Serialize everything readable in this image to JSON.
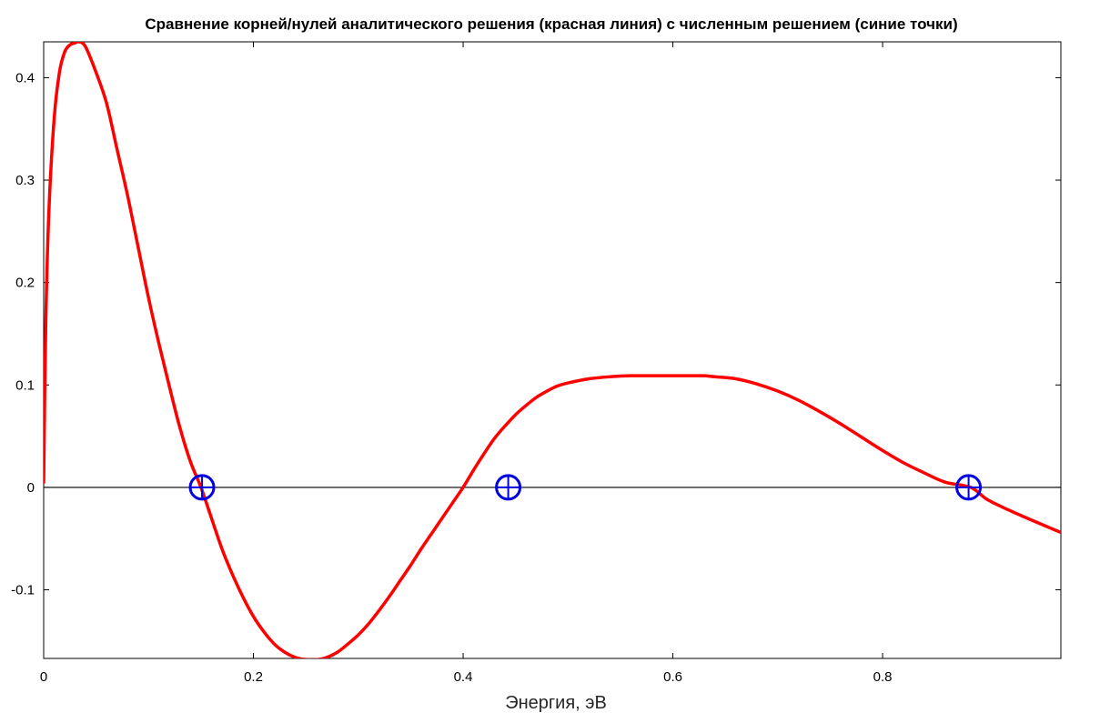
{
  "chart_data": {
    "type": "line",
    "title": "Сравнение корней/нулей аналитического решения (красная линия) с численным решением (синие точки)",
    "xlabel": "Энергия, эВ",
    "ylabel": "",
    "xlim": [
      0,
      0.97
    ],
    "ylim": [
      -0.167,
      0.435
    ],
    "xticks": [
      0,
      0.2,
      0.4,
      0.6,
      0.8
    ],
    "xtick_labels": [
      "0",
      "0.2",
      "0.4",
      "0.6",
      "0.8"
    ],
    "yticks": [
      -0.1,
      0,
      0.1,
      0.2,
      0.3,
      0.4
    ],
    "ytick_labels": [
      "-0.1",
      "0",
      "0.1",
      "0.2",
      "0.3",
      "0.4"
    ],
    "grid": false,
    "zero_line": true,
    "series": [
      {
        "color": "#ff0000",
        "x": [
          0.0,
          0.002,
          0.005,
          0.01,
          0.015,
          0.02,
          0.025,
          0.03,
          0.034,
          0.04,
          0.05,
          0.06,
          0.07,
          0.08,
          0.09,
          0.1,
          0.11,
          0.12,
          0.13,
          0.14,
          0.15,
          0.16,
          0.17,
          0.18,
          0.19,
          0.2,
          0.21,
          0.22,
          0.23,
          0.24,
          0.25,
          0.262,
          0.27,
          0.28,
          0.29,
          0.3,
          0.31,
          0.32,
          0.33,
          0.34,
          0.35,
          0.36,
          0.37,
          0.38,
          0.39,
          0.4,
          0.41,
          0.42,
          0.43,
          0.44,
          0.45,
          0.46,
          0.47,
          0.48,
          0.49,
          0.5,
          0.52,
          0.54,
          0.56,
          0.58,
          0.6,
          0.62,
          0.63,
          0.64,
          0.66,
          0.68,
          0.7,
          0.72,
          0.74,
          0.76,
          0.78,
          0.8,
          0.82,
          0.84,
          0.86,
          0.884,
          0.9,
          0.92,
          0.94,
          0.97
        ],
        "y": [
          0.005,
          0.16,
          0.27,
          0.36,
          0.405,
          0.425,
          0.432,
          0.434,
          0.435,
          0.43,
          0.405,
          0.375,
          0.33,
          0.285,
          0.235,
          0.185,
          0.14,
          0.098,
          0.058,
          0.025,
          0.0,
          -0.03,
          -0.06,
          -0.085,
          -0.107,
          -0.126,
          -0.141,
          -0.153,
          -0.161,
          -0.166,
          -0.168,
          -0.168,
          -0.166,
          -0.161,
          -0.153,
          -0.144,
          -0.133,
          -0.12,
          -0.106,
          -0.091,
          -0.076,
          -0.06,
          -0.045,
          -0.03,
          -0.015,
          0.0,
          0.017,
          0.033,
          0.048,
          0.06,
          0.071,
          0.08,
          0.088,
          0.094,
          0.099,
          0.102,
          0.106,
          0.108,
          0.109,
          0.109,
          0.109,
          0.109,
          0.109,
          0.108,
          0.106,
          0.101,
          0.094,
          0.085,
          0.074,
          0.062,
          0.049,
          0.036,
          0.024,
          0.014,
          0.005,
          0.0,
          -0.012,
          -0.022,
          -0.031,
          -0.044
        ]
      },
      {
        "color": "#0000e0",
        "marker": "circle-plus",
        "x": [
          0.151,
          0.443,
          0.882
        ],
        "y": [
          0.0,
          0.0,
          0.0
        ]
      }
    ]
  }
}
